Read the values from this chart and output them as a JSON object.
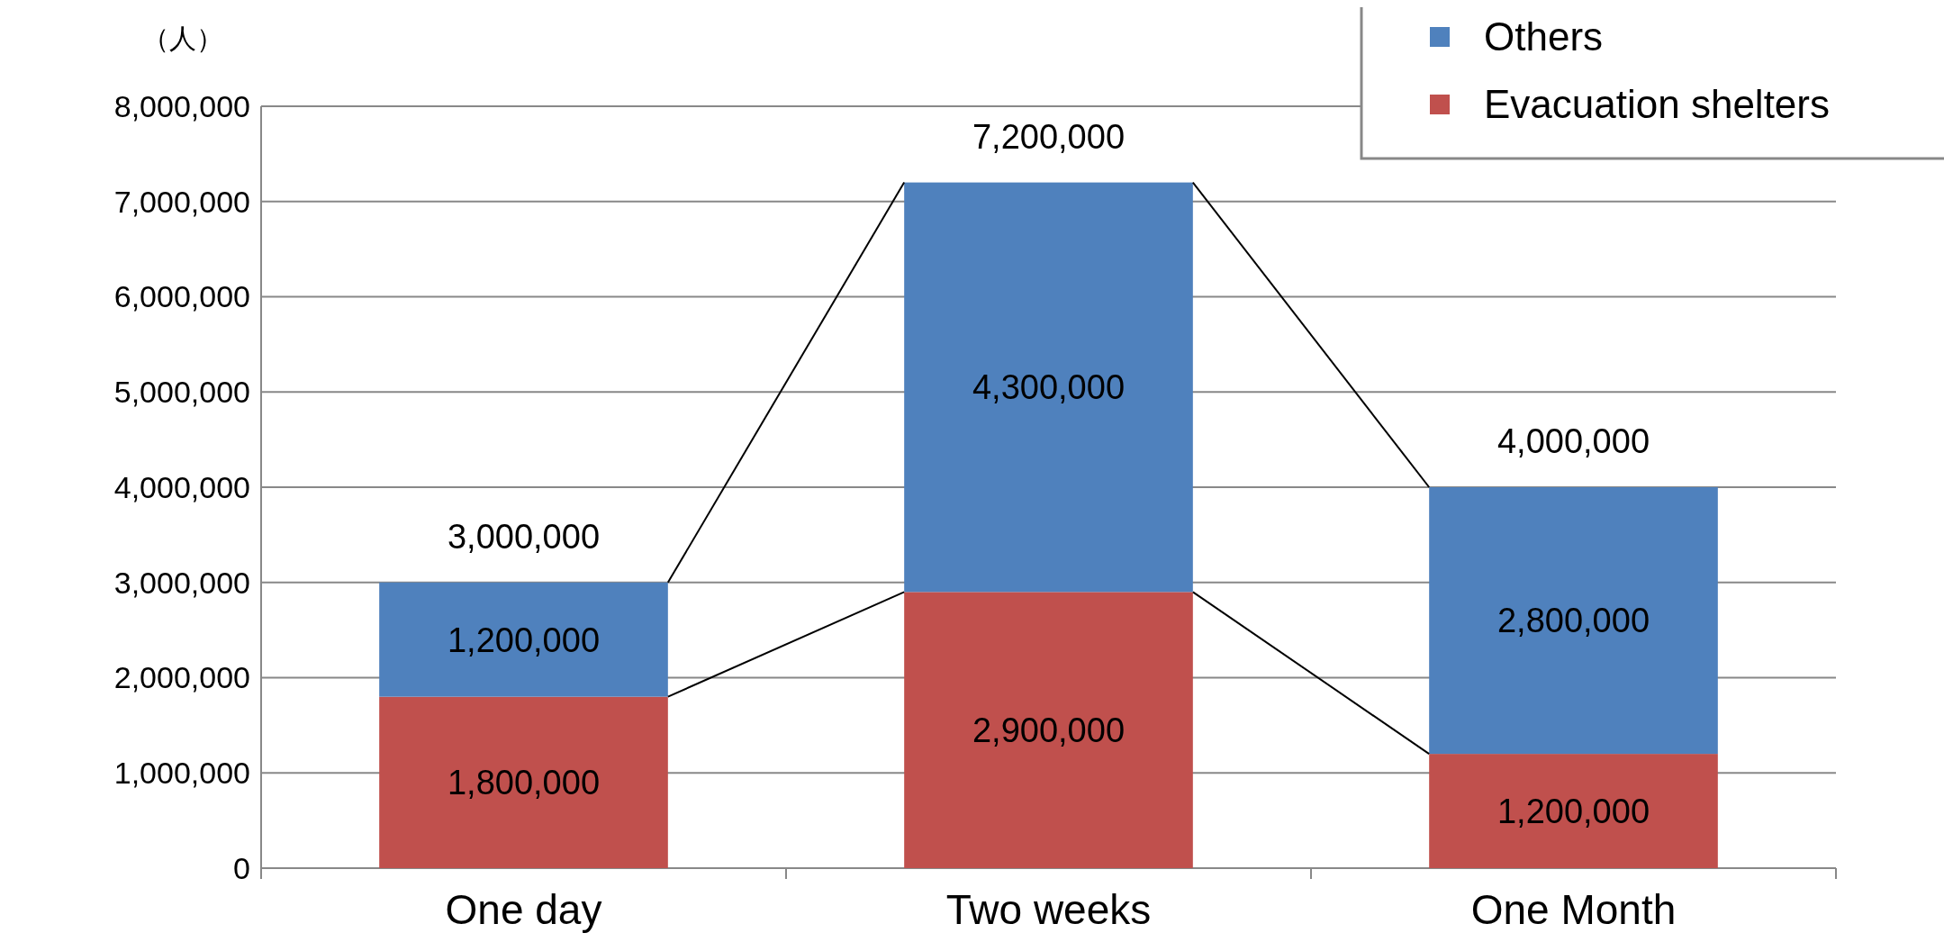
{
  "chart_data": {
    "type": "bar",
    "stacked": true,
    "ylabel": "（人）",
    "categories": [
      "One day",
      "Two weeks",
      "One Month"
    ],
    "series": [
      {
        "name": "Evacuation shelters",
        "color": "#c0504d",
        "values": [
          1800000,
          2900000,
          1200000
        ],
        "value_labels": [
          "1,800,000",
          "2,900,000",
          "1,200,000"
        ]
      },
      {
        "name": "Others",
        "color": "#4f81bd",
        "values": [
          1200000,
          4300000,
          2800000
        ],
        "value_labels": [
          "1,200,000",
          "4,300,000",
          "2,800,000"
        ]
      }
    ],
    "ylim": [
      0,
      8000000
    ],
    "yticks": [
      {
        "value": 0,
        "label": "0"
      },
      {
        "value": 1000000,
        "label": "1,000,000"
      },
      {
        "value": 2000000,
        "label": "2,000,000"
      },
      {
        "value": 3000000,
        "label": "3,000,000"
      },
      {
        "value": 4000000,
        "label": "4,000,000"
      },
      {
        "value": 5000000,
        "label": "5,000,000"
      },
      {
        "value": 6000000,
        "label": "6,000,000"
      },
      {
        "value": 7000000,
        "label": "7,000,000"
      },
      {
        "value": 8000000,
        "label": "8,000,000"
      }
    ],
    "grid": "y",
    "legend": "top right",
    "totals": [
      "3,000,000",
      "7,200,000",
      "4,000,000"
    ]
  }
}
